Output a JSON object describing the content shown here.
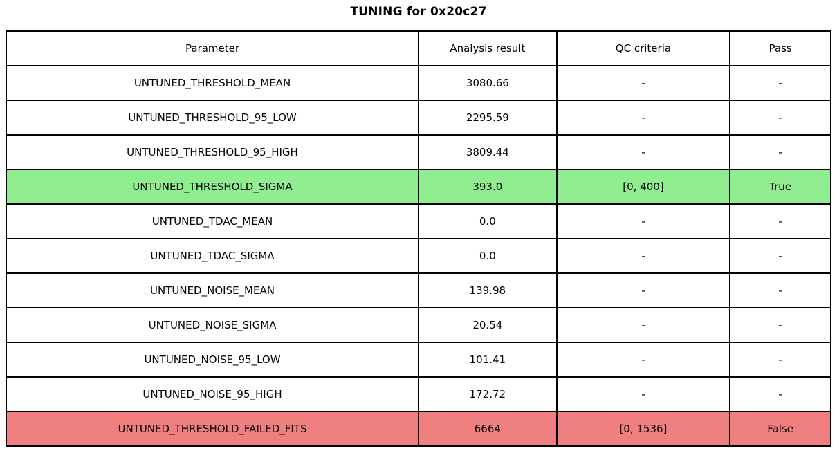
{
  "title": "TUNING for 0x20c27",
  "colors": {
    "pass_green": "#90ee90",
    "fail_red": "#f08080",
    "border": "#000000",
    "background": "#ffffff",
    "text": "#000000"
  },
  "chart_data": {
    "type": "table",
    "title": "TUNING for 0x20c27",
    "columns": [
      "Parameter",
      "Analysis result",
      "QC criteria",
      "Pass"
    ],
    "column_widths_pct": [
      50.0,
      16.75,
      21.02,
      12.23
    ],
    "rows": [
      {
        "cells": [
          "UNTUNED_THRESHOLD_MEAN",
          "3080.66",
          "-",
          "-"
        ],
        "highlight": null
      },
      {
        "cells": [
          "UNTUNED_THRESHOLD_95_LOW",
          "2295.59",
          "-",
          "-"
        ],
        "highlight": null
      },
      {
        "cells": [
          "UNTUNED_THRESHOLD_95_HIGH",
          "3809.44",
          "-",
          "-"
        ],
        "highlight": null
      },
      {
        "cells": [
          "UNTUNED_THRESHOLD_SIGMA",
          "393.0",
          "[0, 400]",
          "True"
        ],
        "highlight": "green"
      },
      {
        "cells": [
          "UNTUNED_TDAC_MEAN",
          "0.0",
          "-",
          "-"
        ],
        "highlight": null
      },
      {
        "cells": [
          "UNTUNED_TDAC_SIGMA",
          "0.0",
          "-",
          "-"
        ],
        "highlight": null
      },
      {
        "cells": [
          "UNTUNED_NOISE_MEAN",
          "139.98",
          "-",
          "-"
        ],
        "highlight": null
      },
      {
        "cells": [
          "UNTUNED_NOISE_SIGMA",
          "20.54",
          "-",
          "-"
        ],
        "highlight": null
      },
      {
        "cells": [
          "UNTUNED_NOISE_95_LOW",
          "101.41",
          "-",
          "-"
        ],
        "highlight": null
      },
      {
        "cells": [
          "UNTUNED_NOISE_95_HIGH",
          "172.72",
          "-",
          "-"
        ],
        "highlight": null
      },
      {
        "cells": [
          "UNTUNED_THRESHOLD_FAILED_FITS",
          "6664",
          "[0, 1536]",
          "False"
        ],
        "highlight": "red"
      }
    ]
  }
}
